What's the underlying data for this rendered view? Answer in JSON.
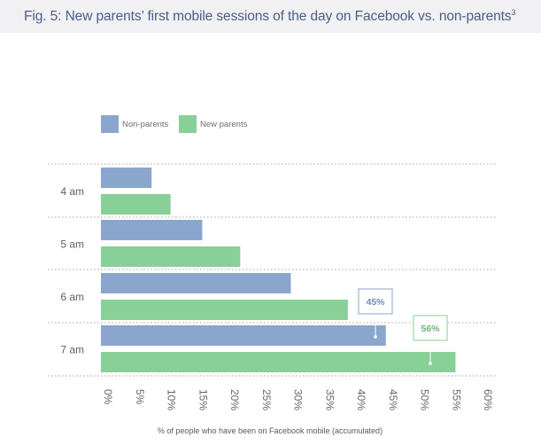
{
  "title": {
    "main": "Fig. 5: New parents’ first mobile sessions of the day on Facebook vs. non-parents",
    "footnote": "3"
  },
  "colors": {
    "non_parents": "#8ba6cd",
    "new_parents": "#88cf98",
    "title_bar": "#f1f1f3",
    "title_text": "#4a5e86"
  },
  "legend": [
    {
      "key": "non_parents",
      "label": "Non-parents"
    },
    {
      "key": "new_parents",
      "label": "New parents"
    }
  ],
  "chart_data": {
    "type": "bar",
    "orientation": "horizontal",
    "categories": [
      "4 am",
      "5 am",
      "6 am",
      "7 am"
    ],
    "series": [
      {
        "name": "Non-parents",
        "key": "non_parents",
        "values": [
          8,
          16,
          30,
          45
        ]
      },
      {
        "name": "New parents",
        "key": "new_parents",
        "values": [
          11,
          22,
          39,
          56
        ]
      }
    ],
    "xlabel": "% of people who have been on Facebook mobile (accumulated)",
    "ylabel": "",
    "xlim": [
      0,
      60
    ],
    "xticks": [
      "0%",
      "5%",
      "10%",
      "15%",
      "20%",
      "25%",
      "30%",
      "35%",
      "40%",
      "45%",
      "50%",
      "55%",
      "60%"
    ],
    "grid": "dotted separators between categories",
    "legend_position": "top-left",
    "annotations": [
      {
        "series": "Non-parents",
        "category": "7 am",
        "label": "45%"
      },
      {
        "series": "New parents",
        "category": "7 am",
        "label": "56%"
      }
    ]
  }
}
